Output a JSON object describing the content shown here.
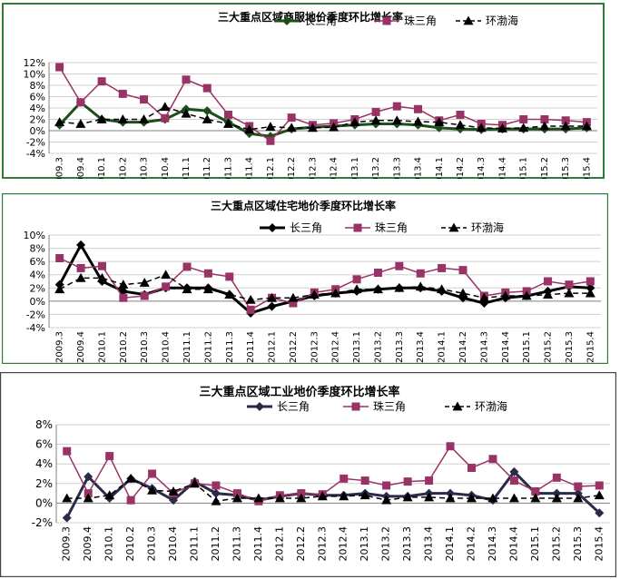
{
  "categories": [
    "2009.3",
    "2009.4",
    "2010.1",
    "2010.2",
    "2010.3",
    "2010.4",
    "2011.1",
    "2011.2",
    "2011.3",
    "2011.4",
    "2012.1",
    "2012.2",
    "2012.3",
    "2012.4",
    "2013.1",
    "2013.2",
    "2013.3",
    "2013.4",
    "2014.1",
    "2014.2",
    "2014.3",
    "2014.4",
    "2015.1",
    "2015.2",
    "2015.3",
    "2015.4"
  ],
  "chart_data": [
    {
      "type": "line",
      "title": "三大重点区域商服地价季度环比增长率",
      "ylim": [
        -4,
        12
      ],
      "yticks": [
        "-4%",
        "-2%",
        "0%",
        "2%",
        "4%",
        "6%",
        "8%",
        "10%",
        "12%"
      ],
      "legend_position": "top-right",
      "series": [
        {
          "name": "长三角",
          "color": "#1a4f1a",
          "marker": "diamond",
          "dash": "solid",
          "values": [
            1.0,
            5.0,
            2.0,
            1.5,
            1.5,
            2.0,
            3.8,
            3.5,
            1.5,
            -0.5,
            -1.0,
            0.3,
            0.6,
            0.8,
            1.0,
            1.2,
            1.2,
            1.0,
            0.5,
            0.3,
            0.2,
            0.3,
            0.3,
            0.3,
            0.3,
            0.5
          ]
        },
        {
          "name": "珠三角",
          "color": "#993366",
          "marker": "square",
          "dash": "solid",
          "values": [
            11.2,
            5.0,
            8.7,
            6.5,
            5.5,
            2.2,
            9.0,
            7.5,
            2.8,
            0.8,
            -1.8,
            2.3,
            1.0,
            1.3,
            2.0,
            3.3,
            4.3,
            3.8,
            1.8,
            2.8,
            1.2,
            1.0,
            2.0,
            2.0,
            1.8,
            1.5
          ]
        },
        {
          "name": "环渤海",
          "color": "#000000",
          "marker": "triangle",
          "dash": "dash",
          "values": [
            1.5,
            1.2,
            2.0,
            2.0,
            2.0,
            4.2,
            3.0,
            2.0,
            1.2,
            0.2,
            0.7,
            0.5,
            0.5,
            0.6,
            1.5,
            1.8,
            1.8,
            1.6,
            1.5,
            1.0,
            0.5,
            0.4,
            0.5,
            0.8,
            0.8,
            0.8
          ]
        }
      ]
    },
    {
      "type": "line",
      "title": "三大重点区域住宅地价季度环比增长率",
      "ylim": [
        -4,
        10
      ],
      "yticks": [
        "-4%",
        "-2%",
        "0%",
        "2%",
        "4%",
        "6%",
        "8%",
        "10%"
      ],
      "legend_position": "top-right",
      "series": [
        {
          "name": "长三角",
          "color": "#000000",
          "marker": "diamond",
          "dash": "solid",
          "values": [
            2.5,
            8.5,
            3.0,
            1.5,
            1.0,
            2.0,
            2.0,
            2.0,
            1.0,
            -1.8,
            -0.8,
            0.0,
            0.8,
            1.2,
            1.5,
            1.8,
            2.0,
            2.0,
            1.5,
            0.5,
            -0.3,
            0.5,
            0.8,
            1.5,
            2.2,
            2.0
          ]
        },
        {
          "name": "珠三角",
          "color": "#993366",
          "marker": "square",
          "dash": "solid",
          "values": [
            6.5,
            5.0,
            5.3,
            0.5,
            0.8,
            2.2,
            5.2,
            4.2,
            3.7,
            -1.3,
            0.5,
            -0.3,
            1.3,
            1.8,
            3.3,
            4.3,
            5.3,
            4.2,
            5.0,
            4.7,
            0.8,
            1.3,
            1.5,
            3.0,
            2.5,
            3.0
          ]
        },
        {
          "name": "环渤海",
          "color": "#000000",
          "marker": "triangle",
          "dash": "dash",
          "values": [
            1.8,
            3.5,
            3.5,
            2.5,
            2.8,
            4.0,
            1.8,
            1.8,
            1.0,
            0.2,
            0.5,
            0.5,
            1.0,
            1.2,
            1.8,
            1.8,
            2.0,
            2.2,
            1.8,
            1.2,
            0.5,
            0.8,
            0.8,
            1.0,
            1.2,
            1.2
          ]
        }
      ]
    },
    {
      "type": "line",
      "title": "三大重点区域工业地价季度环比增长率",
      "ylim": [
        -2,
        8
      ],
      "yticks": [
        "-2%",
        "0%",
        "2%",
        "4%",
        "6%",
        "8%"
      ],
      "legend_position": "top-right",
      "series": [
        {
          "name": "长三角",
          "color": "#2a2a4a",
          "marker": "diamond",
          "dash": "solid",
          "values": [
            -1.5,
            2.7,
            0.5,
            2.5,
            1.5,
            0.3,
            2.2,
            1.0,
            0.8,
            0.3,
            0.7,
            1.0,
            0.8,
            0.8,
            1.0,
            0.7,
            0.7,
            1.0,
            1.0,
            0.8,
            0.3,
            3.2,
            1.0,
            1.0,
            1.0,
            -1.0
          ]
        },
        {
          "name": "珠三角",
          "color": "#993366",
          "marker": "square",
          "dash": "solid",
          "values": [
            5.3,
            1.0,
            4.8,
            0.3,
            3.0,
            1.0,
            2.0,
            1.8,
            1.0,
            0.2,
            0.8,
            1.0,
            0.9,
            2.5,
            2.3,
            1.8,
            2.2,
            2.3,
            5.8,
            3.6,
            4.5,
            2.3,
            1.2,
            2.6,
            1.7,
            1.8
          ]
        },
        {
          "name": "环渤海",
          "color": "#000000",
          "marker": "triangle",
          "dash": "dash",
          "values": [
            0.5,
            0.5,
            0.8,
            2.5,
            1.3,
            1.2,
            2.0,
            0.2,
            0.5,
            0.5,
            0.5,
            0.5,
            0.7,
            0.7,
            0.8,
            0.3,
            0.6,
            0.6,
            0.5,
            0.5,
            0.5,
            0.5,
            0.5,
            0.5,
            0.5,
            0.8
          ]
        }
      ]
    }
  ]
}
